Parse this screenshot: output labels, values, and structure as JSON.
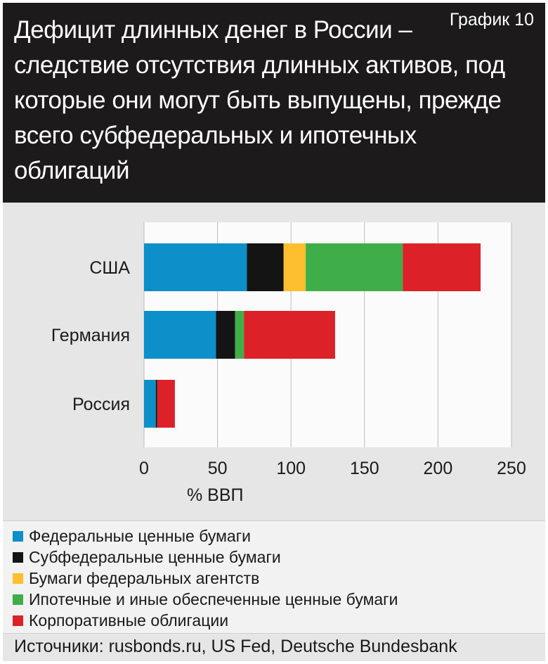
{
  "header": {
    "title": "Дефицит длинных денег в России – следствие отсутствия длинных активов, под которые они могут быть выпущены, прежде всего субфедеральных и ипотечных облигаций",
    "figure_label": "График 10"
  },
  "source": "Источники: rusbonds.ru, US Fed, Deutsche Bundesbank",
  "chart_data": {
    "type": "bar",
    "orientation": "horizontal",
    "stacked": true,
    "title": "Дефицит длинных денег в России – следствие отсутствия длинных активов, под которые они могут быть выпущены, прежде всего субфедеральных и ипотечных облигаций",
    "xlabel": "% ВВП",
    "ylabel": "",
    "xlim": [
      0,
      250
    ],
    "xticks": [
      0,
      50,
      100,
      150,
      200,
      250
    ],
    "grid": true,
    "legend_position": "bottom",
    "categories": [
      "США",
      "Германия",
      "Россия"
    ],
    "series": [
      {
        "name": "Федеральные ценные бумаги",
        "color": "#0d8fc9",
        "values": [
          70,
          49,
          8
        ]
      },
      {
        "name": "Субфедеральные ценные бумаги",
        "color": "#141414",
        "values": [
          25,
          13,
          1
        ]
      },
      {
        "name": "Бумаги федеральных агентств",
        "color": "#fdbf2d",
        "values": [
          15,
          0,
          0
        ]
      },
      {
        "name": "Ипотечные и иные обеспеченные ценные бумаги",
        "color": "#3fae49",
        "values": [
          66,
          6,
          0
        ]
      },
      {
        "name": "Корпоративные облигации",
        "color": "#dc2128",
        "values": [
          53,
          62,
          12
        ]
      }
    ]
  }
}
